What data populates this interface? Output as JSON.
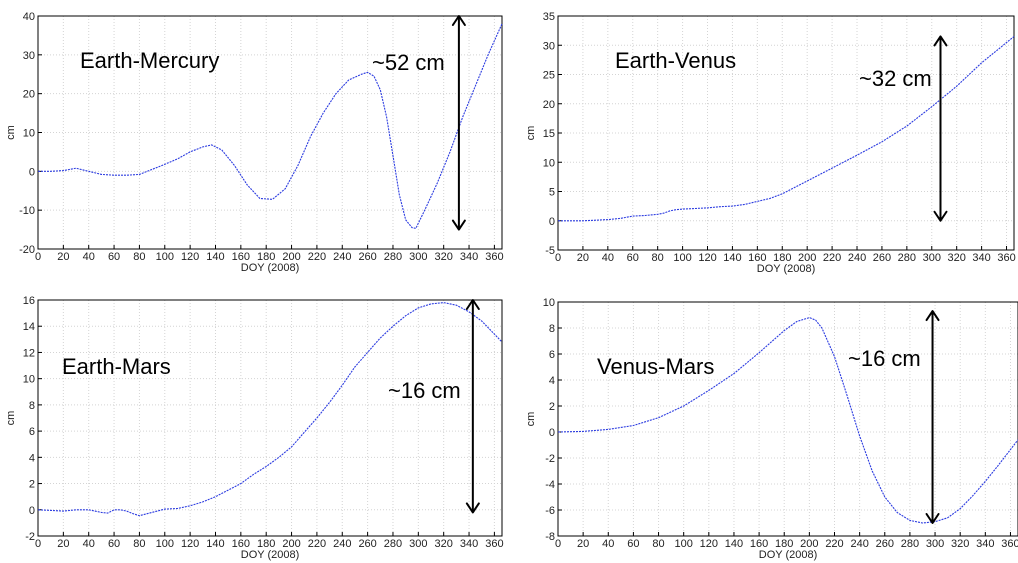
{
  "chart_data": [
    {
      "type": "line",
      "title": "",
      "xlabel": "DOY (2008)",
      "ylabel": "cm",
      "xlim": [
        0,
        366
      ],
      "ylim": [
        -20,
        40
      ],
      "xticks": [
        "0",
        "20",
        "40",
        "60",
        "80",
        "100",
        "120",
        "140",
        "160",
        "180",
        "200",
        "220",
        "240",
        "260",
        "280",
        "300",
        "320",
        "340",
        "360"
      ],
      "yticks": [
        "-20",
        "-10",
        "0",
        "10",
        "20",
        "30",
        "40"
      ],
      "grid": true,
      "annotation_label": "Earth-Mercury",
      "arrow_label": "~52 cm",
      "arrow": {
        "x": 332,
        "y_from": -15,
        "y_to": 40
      },
      "series": [
        {
          "x": [
            0,
            10,
            20,
            25,
            30,
            35,
            40,
            50,
            60,
            70,
            80,
            90,
            100,
            110,
            120,
            130,
            137,
            145,
            155,
            165,
            175,
            185,
            195,
            205,
            215,
            225,
            235,
            245,
            255,
            260,
            265,
            270,
            275,
            280,
            285,
            290,
            295,
            298,
            305,
            315,
            325,
            335,
            345,
            355,
            366
          ],
          "y": [
            0,
            0,
            0.2,
            0.5,
            0.8,
            0.4,
            0,
            -0.8,
            -1,
            -1,
            -0.8,
            0.5,
            1.8,
            3.2,
            5,
            6.3,
            6.8,
            5.5,
            1.5,
            -3.5,
            -7,
            -7.2,
            -4.5,
            1.5,
            9,
            15,
            20,
            23.5,
            25,
            25.5,
            24.5,
            21,
            14,
            4,
            -6,
            -12.5,
            -14.5,
            -14.7,
            -10,
            -3,
            5,
            14,
            22,
            30,
            38
          ]
        }
      ]
    },
    {
      "type": "line",
      "title": "",
      "xlabel": "DOY (2008)",
      "ylabel": "cm",
      "xlim": [
        0,
        366
      ],
      "ylim": [
        -5,
        35
      ],
      "xticks": [
        "0",
        "20",
        "40",
        "60",
        "80",
        "100",
        "120",
        "140",
        "160",
        "180",
        "200",
        "220",
        "240",
        "260",
        "280",
        "300",
        "320",
        "340",
        "360"
      ],
      "yticks": [
        "-5",
        "0",
        "5",
        "10",
        "15",
        "20",
        "25",
        "30",
        "35"
      ],
      "grid": true,
      "annotation_label": "Earth-Venus",
      "arrow_label": "~32 cm",
      "arrow": {
        "x": 307,
        "y_from": 0,
        "y_to": 31.5
      },
      "series": [
        {
          "x": [
            0,
            10,
            20,
            30,
            40,
            50,
            60,
            70,
            80,
            85,
            90,
            95,
            100,
            110,
            120,
            130,
            140,
            150,
            160,
            170,
            180,
            190,
            200,
            220,
            240,
            260,
            280,
            300,
            320,
            340,
            366
          ],
          "y": [
            0,
            0,
            0,
            0.1,
            0.2,
            0.4,
            0.8,
            0.9,
            1.1,
            1.3,
            1.7,
            1.9,
            2.0,
            2.1,
            2.2,
            2.4,
            2.5,
            2.8,
            3.3,
            3.8,
            4.6,
            5.7,
            6.8,
            9.0,
            11.2,
            13.5,
            16.2,
            19.5,
            23.0,
            27.0,
            31.5
          ]
        }
      ]
    },
    {
      "type": "line",
      "title": "",
      "xlabel": "DOY (2008)",
      "ylabel": "cm",
      "xlim": [
        0,
        366
      ],
      "ylim": [
        -2,
        16
      ],
      "xticks": [
        "0",
        "20",
        "40",
        "60",
        "80",
        "100",
        "120",
        "140",
        "160",
        "180",
        "200",
        "220",
        "240",
        "260",
        "280",
        "300",
        "320",
        "340",
        "360"
      ],
      "yticks": [
        "-2",
        "0",
        "2",
        "4",
        "6",
        "8",
        "10",
        "12",
        "14",
        "16"
      ],
      "grid": true,
      "annotation_label": "Earth-Mars",
      "arrow_label": "~16 cm",
      "arrow": {
        "x": 343,
        "y_from": -0.2,
        "y_to": 16
      },
      "series": [
        {
          "x": [
            0,
            10,
            20,
            30,
            40,
            50,
            55,
            60,
            65,
            70,
            75,
            80,
            90,
            100,
            110,
            120,
            130,
            140,
            150,
            160,
            170,
            180,
            190,
            200,
            210,
            220,
            230,
            240,
            250,
            260,
            270,
            280,
            290,
            300,
            310,
            320,
            330,
            340,
            350,
            366
          ],
          "y": [
            0,
            -0.05,
            -0.1,
            0,
            0,
            -0.2,
            -0.25,
            0,
            0,
            -0.1,
            -0.3,
            -0.45,
            -0.2,
            0.05,
            0.1,
            0.3,
            0.6,
            1.0,
            1.5,
            2.0,
            2.7,
            3.3,
            4.0,
            4.8,
            5.9,
            7.0,
            8.2,
            9.5,
            10.9,
            12.0,
            13.1,
            14.0,
            14.8,
            15.4,
            15.7,
            15.8,
            15.6,
            15.1,
            14.4,
            12.8
          ]
        }
      ]
    },
    {
      "type": "line",
      "title": "",
      "xlabel": "DOY (2008)",
      "ylabel": "cm",
      "xlim": [
        0,
        366
      ],
      "ylim": [
        -8,
        10
      ],
      "xticks": [
        "0",
        "20",
        "40",
        "60",
        "80",
        "100",
        "120",
        "140",
        "160",
        "180",
        "200",
        "220",
        "240",
        "260",
        "280",
        "300",
        "320",
        "340",
        "360"
      ],
      "yticks": [
        "-8",
        "-6",
        "-4",
        "-2",
        "0",
        "2",
        "4",
        "6",
        "8",
        "10"
      ],
      "grid": true,
      "annotation_label": "Venus-Mars",
      "arrow_label": "~16 cm",
      "arrow": {
        "x": 298,
        "y_from": -7,
        "y_to": 9.3
      },
      "series": [
        {
          "x": [
            0,
            20,
            40,
            60,
            80,
            100,
            120,
            140,
            160,
            180,
            190,
            200,
            205,
            210,
            220,
            230,
            240,
            250,
            260,
            270,
            280,
            290,
            300,
            310,
            320,
            330,
            340,
            350,
            366
          ],
          "y": [
            0,
            0.05,
            0.2,
            0.5,
            1.1,
            2.0,
            3.2,
            4.5,
            6.1,
            7.8,
            8.5,
            8.8,
            8.6,
            8.0,
            5.8,
            2.8,
            -0.3,
            -3.0,
            -5.0,
            -6.2,
            -6.8,
            -7.0,
            -6.9,
            -6.6,
            -5.9,
            -4.9,
            -3.8,
            -2.6,
            -0.6
          ]
        }
      ]
    }
  ]
}
